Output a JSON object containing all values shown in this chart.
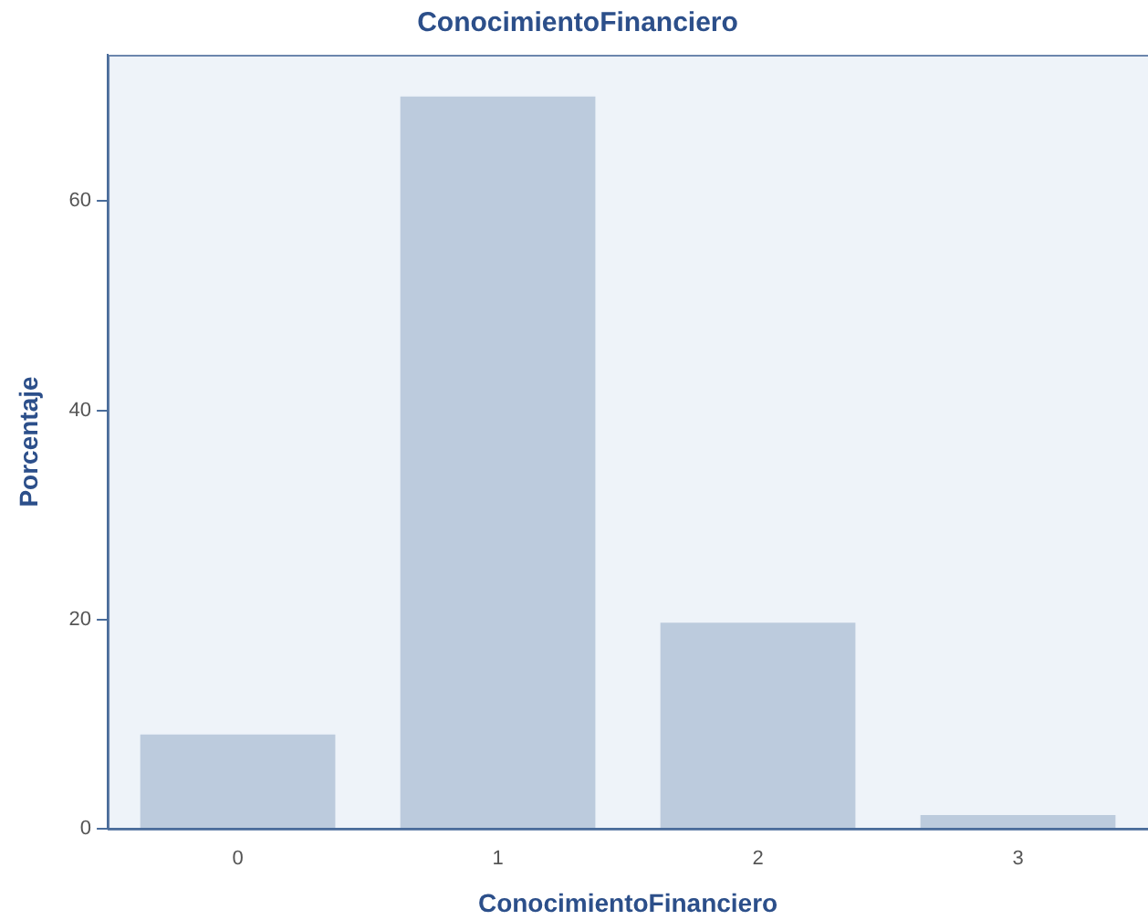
{
  "chart_data": {
    "type": "bar",
    "title": "ConocimientoFinanciero",
    "xlabel": "ConocimientoFinanciero",
    "ylabel": "Porcentaje",
    "categories": [
      "0",
      "1",
      "2",
      "3"
    ],
    "values": [
      9.0,
      70.0,
      19.7,
      1.3
    ],
    "color": "#bccbdd",
    "ylim": [
      0,
      74
    ],
    "yticks": [
      0,
      20,
      40,
      60
    ],
    "grid": false,
    "legend": false
  }
}
